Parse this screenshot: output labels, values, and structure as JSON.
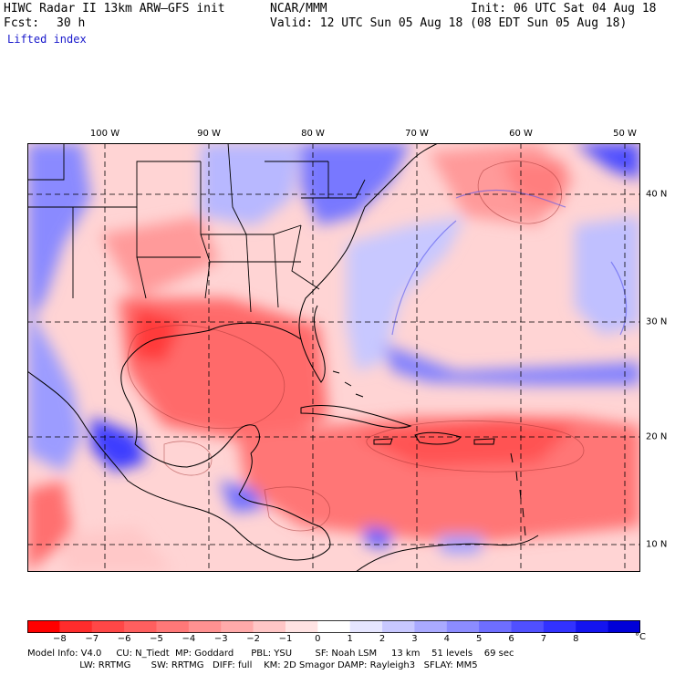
{
  "header": {
    "title": "HIWC Radar II 13km ARW–GFS init",
    "org": "NCAR/MMM",
    "init": "Init: 06 UTC Sat 04 Aug 18",
    "fcst_label": "Fcst:",
    "fcst_value": "30 h",
    "valid": "Valid: 12 UTC Sun 05 Aug 18 (08 EDT Sun 05 Aug 18)",
    "field": "Lifted index"
  },
  "map": {
    "lon_labels": [
      "100 W",
      "90 W",
      "80 W",
      "70 W",
      "60 W",
      "50 W"
    ],
    "lat_labels": [
      "40 N",
      "30 N",
      "20 N",
      "10 N"
    ],
    "colors": {
      "negative_max": "#ff2020",
      "neutral": "#ffffff",
      "positive_max": "#0000ff"
    }
  },
  "colorbar": {
    "ticks": [
      "−8",
      "−7",
      "−6",
      "−5",
      "−4",
      "−3",
      "−2",
      "−1",
      "0",
      "1",
      "2",
      "3",
      "4",
      "5",
      "6",
      "7",
      "8"
    ],
    "unit": "°C",
    "colors": [
      "#ff0000",
      "#ff2c2c",
      "#ff4747",
      "#ff5f5f",
      "#ff7878",
      "#ff9191",
      "#ffaaaa",
      "#ffc6c6",
      "#ffe3e3",
      "#ffffff",
      "#e6e6ff",
      "#c8c8ff",
      "#aaaaff",
      "#8c8cff",
      "#6e6eff",
      "#5050ff",
      "#3232ff",
      "#1414f0",
      "#0000d8"
    ]
  },
  "footer": {
    "line1": "Model Info: V4.0     CU: N_Tiedt  MP: Goddard      PBL: YSU        SF: Noah LSM     13 km    51 levels    69 sec",
    "line2": "                  LW: RRTMG       SW: RRTMG   DIFF: full    KM: 2D Smagor DAMP: Rayleigh3   SFLAY: MM5"
  }
}
